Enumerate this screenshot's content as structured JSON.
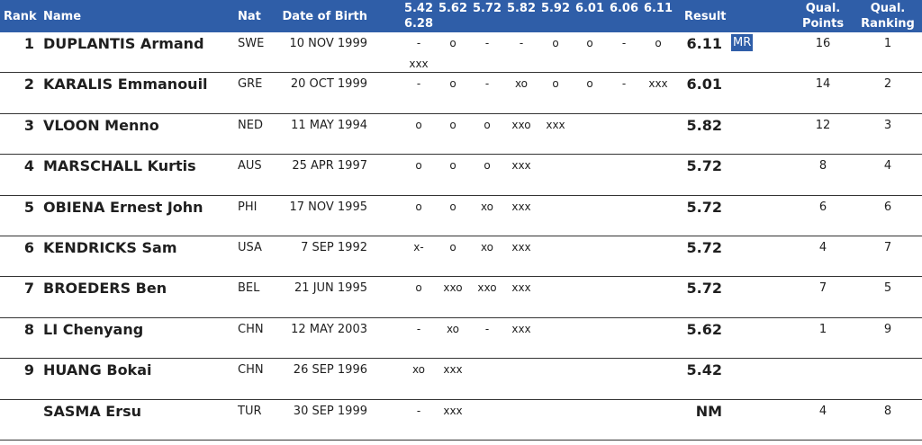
{
  "header": {
    "rank": "Rank",
    "name": "Name",
    "nat": "Nat",
    "dob": "Date of Birth",
    "heights_row1": [
      "5.42",
      "5.62",
      "5.72",
      "5.82",
      "5.92",
      "6.01",
      "6.06",
      "6.11"
    ],
    "heights_row2": "6.28",
    "result": "Result",
    "qual_points_1": "Qual.",
    "qual_points_2": "Points",
    "qual_ranking_1": "Qual.",
    "qual_ranking_2": "Ranking"
  },
  "rows": [
    {
      "rank": "1",
      "name": "DUPLANTIS Armand",
      "nat": "SWE",
      "dob": "10 NOV 1999",
      "attempts": [
        "-",
        "o",
        "-",
        "-",
        "o",
        "o",
        "-",
        "o"
      ],
      "extra": "xxx",
      "result": "6.11",
      "record": "MR",
      "points": "16",
      "qrank": "1"
    },
    {
      "rank": "2",
      "name": "KARALIS Emmanouil",
      "nat": "GRE",
      "dob": "20 OCT 1999",
      "attempts": [
        "-",
        "o",
        "-",
        "xo",
        "o",
        "o",
        "-",
        "xxx"
      ],
      "extra": "",
      "result": "6.01",
      "record": "",
      "points": "14",
      "qrank": "2"
    },
    {
      "rank": "3",
      "name": "VLOON Menno",
      "nat": "NED",
      "dob": "11 MAY 1994",
      "attempts": [
        "o",
        "o",
        "o",
        "xxo",
        "xxx",
        "",
        "",
        ""
      ],
      "extra": "",
      "result": "5.82",
      "record": "",
      "points": "12",
      "qrank": "3"
    },
    {
      "rank": "4",
      "name": "MARSCHALL Kurtis",
      "nat": "AUS",
      "dob": "25 APR 1997",
      "attempts": [
        "o",
        "o",
        "o",
        "xxx",
        "",
        "",
        "",
        ""
      ],
      "extra": "",
      "result": "5.72",
      "record": "",
      "points": "8",
      "qrank": "4"
    },
    {
      "rank": "5",
      "name": "OBIENA Ernest John",
      "nat": "PHI",
      "dob": "17 NOV 1995",
      "attempts": [
        "o",
        "o",
        "xo",
        "xxx",
        "",
        "",
        "",
        ""
      ],
      "extra": "",
      "result": "5.72",
      "record": "",
      "points": "6",
      "qrank": "6"
    },
    {
      "rank": "6",
      "name": "KENDRICKS Sam",
      "nat": "USA",
      "dob": "7 SEP 1992",
      "attempts": [
        "x-",
        "o",
        "xo",
        "xxx",
        "",
        "",
        "",
        ""
      ],
      "extra": "",
      "result": "5.72",
      "record": "",
      "points": "4",
      "qrank": "7"
    },
    {
      "rank": "7",
      "name": "BROEDERS Ben",
      "nat": "BEL",
      "dob": "21 JUN 1995",
      "attempts": [
        "o",
        "xxo",
        "xxo",
        "xxx",
        "",
        "",
        "",
        ""
      ],
      "extra": "",
      "result": "5.72",
      "record": "",
      "points": "7",
      "qrank": "5"
    },
    {
      "rank": "8",
      "name": "LI Chenyang",
      "nat": "CHN",
      "dob": "12 MAY 2003",
      "attempts": [
        "-",
        "xo",
        "-",
        "xxx",
        "",
        "",
        "",
        ""
      ],
      "extra": "",
      "result": "5.62",
      "record": "",
      "points": "1",
      "qrank": "9"
    },
    {
      "rank": "9",
      "name": "HUANG Bokai",
      "nat": "CHN",
      "dob": "26 SEP 1996",
      "attempts": [
        "xo",
        "xxx",
        "",
        "",
        "",
        "",
        "",
        ""
      ],
      "extra": "",
      "result": "5.42",
      "record": "",
      "points": "",
      "qrank": ""
    },
    {
      "rank": "",
      "name": "SASMA Ersu",
      "nat": "TUR",
      "dob": "30 SEP 1999",
      "attempts": [
        "-",
        "xxx",
        "",
        "",
        "",
        "",
        "",
        ""
      ],
      "extra": "",
      "result": "NM",
      "record": "",
      "points": "4",
      "qrank": "8"
    }
  ]
}
